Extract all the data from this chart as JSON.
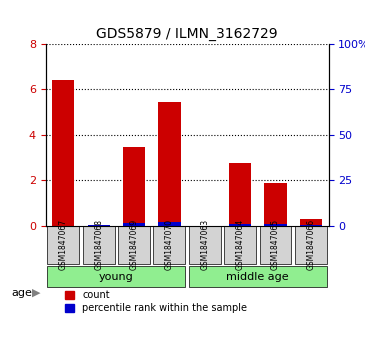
{
  "title": "GDS5879 / ILMN_3162729",
  "samples": [
    "GSM1847067",
    "GSM1847068",
    "GSM1847069",
    "GSM1847070",
    "GSM1847063",
    "GSM1847064",
    "GSM1847065",
    "GSM1847066"
  ],
  "count_values": [
    6.4,
    0.0,
    3.45,
    5.45,
    0.0,
    2.75,
    1.85,
    0.3
  ],
  "percentile_values": [
    0.02,
    0.18,
    1.2,
    1.85,
    0.0,
    1.05,
    0.7,
    0.18
  ],
  "groups": [
    {
      "label": "young",
      "indices": [
        0,
        3
      ],
      "color": "#90EE90"
    },
    {
      "label": "middle age",
      "indices": [
        4,
        7
      ],
      "color": "#90EE90"
    }
  ],
  "ylim_left": [
    0,
    8
  ],
  "ylim_right": [
    0,
    100
  ],
  "yticks_left": [
    0,
    2,
    4,
    6,
    8
  ],
  "yticks_right": [
    0,
    25,
    50,
    75,
    100
  ],
  "ytick_labels_right": [
    "0",
    "25",
    "50",
    "75",
    "100%"
  ],
  "bar_color_red": "#cc0000",
  "bar_color_blue": "#0000cc",
  "bar_width": 0.35,
  "grid_color": "black",
  "grid_style": "dotted",
  "bg_color": "#d3d3d3",
  "age_label": "age",
  "legend_count": "count",
  "legend_percentile": "percentile rank within the sample",
  "tick_color_left": "#cc0000",
  "tick_color_right": "#0000cc"
}
